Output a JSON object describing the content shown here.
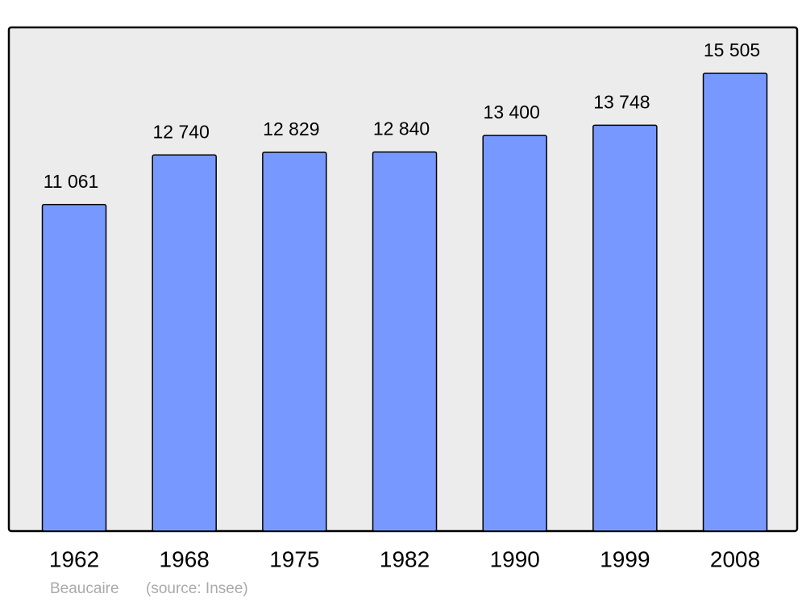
{
  "chart_data": {
    "type": "bar",
    "categories": [
      "1962",
      "1968",
      "1975",
      "1982",
      "1990",
      "1999",
      "2008"
    ],
    "values": [
      11061,
      12740,
      12829,
      12840,
      13400,
      13748,
      15505
    ],
    "value_labels": [
      "11 061",
      "12 740",
      "12 829",
      "12 840",
      "13 400",
      "13 748",
      "15 505"
    ],
    "color": "#7799ff",
    "ylim": [
      0,
      17060
    ],
    "caption": "Beaucaire",
    "source": "(source: Insee)"
  }
}
